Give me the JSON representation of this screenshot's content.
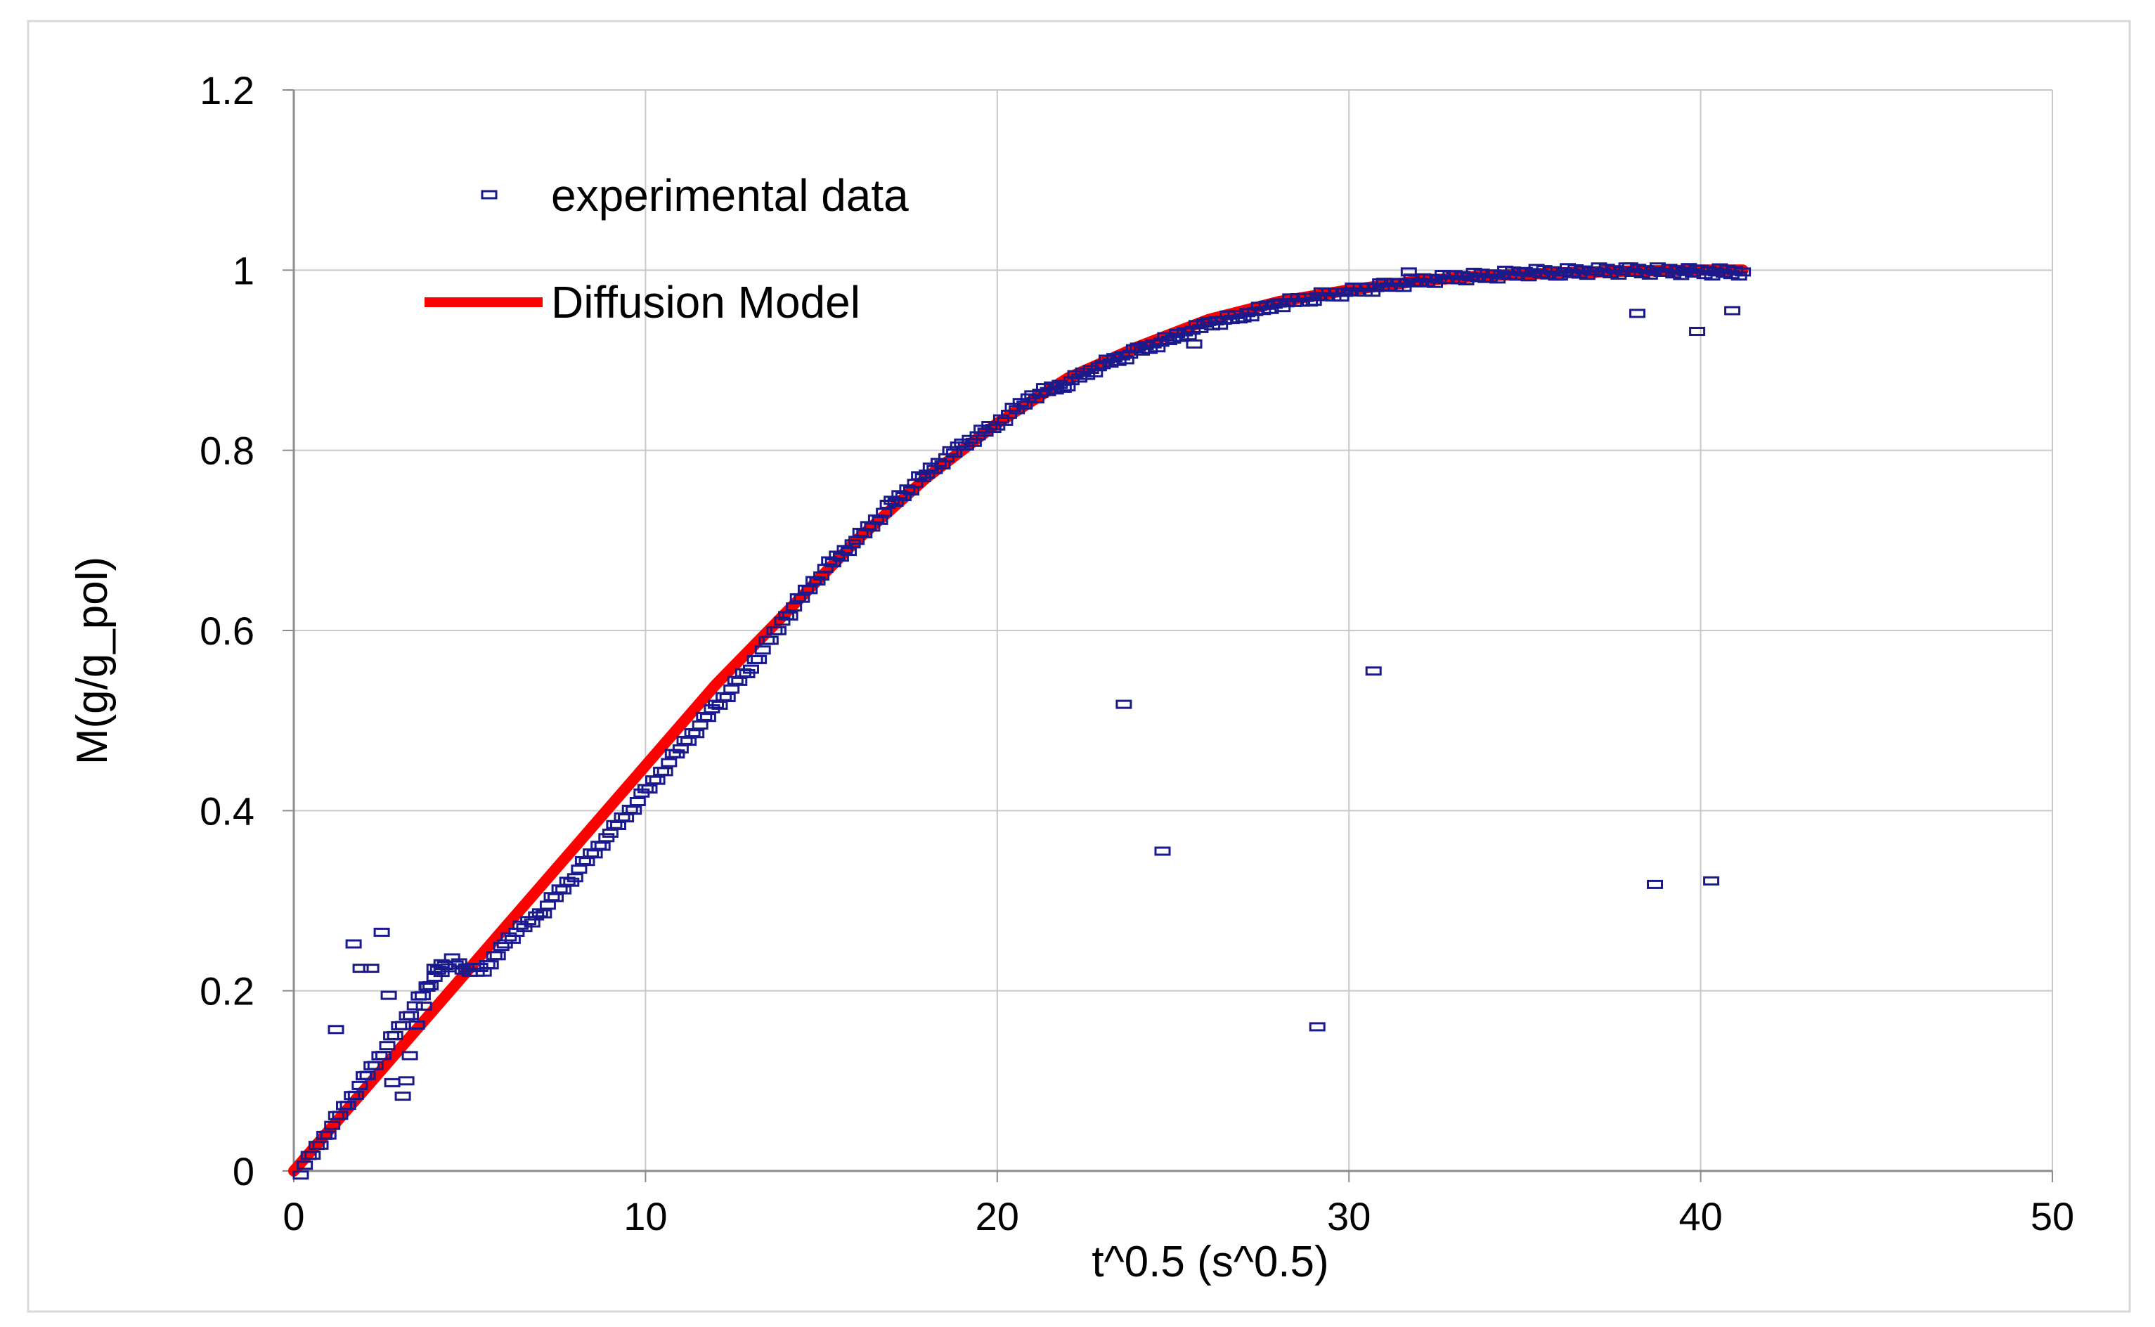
{
  "chart_data": {
    "type": "scatter",
    "title": "",
    "xlabel": "t^0.5 (s^0.5)",
    "ylabel": "M(g/g_pol)",
    "xlim": [
      0,
      50
    ],
    "ylim": [
      0,
      1.2
    ],
    "xticks": [
      "0",
      "10",
      "20",
      "30",
      "40",
      "50"
    ],
    "yticks": [
      "0",
      "0.2",
      "0.4",
      "0.6",
      "0.8",
      "1",
      "1.2"
    ],
    "grid": true,
    "legend_position": "top-left",
    "colors": {
      "experimental": "#1a1a8c",
      "model": "#ff0000",
      "grid": "#c8c8c8",
      "axis": "#8c8c8c"
    },
    "series": [
      {
        "name": "experimental data",
        "type": "scatter",
        "marker": "rect-open",
        "note": "dense measured curve plus scattered outliers",
        "dense_curve": {
          "x": [
            0.2,
            4.0,
            4.5,
            5.0,
            5.5,
            6.0,
            7.0,
            8.0,
            9.0,
            10.0,
            11.0,
            12.0,
            13.0,
            14.0,
            15.0,
            16.0,
            17.0,
            18.0,
            19.0,
            20.0,
            21.0,
            22.0,
            23.0,
            24.0,
            25.0,
            26.0,
            27.0,
            28.0,
            29.0,
            30.0,
            31.0,
            32.0,
            33.0,
            34.0,
            35.0,
            36.0,
            37.0,
            38.0,
            39.0,
            40.0,
            41.2
          ],
          "y": [
            0.0,
            0.215,
            0.232,
            0.222,
            0.226,
            0.255,
            0.285,
            0.33,
            0.375,
            0.42,
            0.47,
            0.515,
            0.56,
            0.615,
            0.665,
            0.7,
            0.74,
            0.775,
            0.805,
            0.83,
            0.86,
            0.875,
            0.895,
            0.91,
            0.925,
            0.94,
            0.95,
            0.962,
            0.97,
            0.976,
            0.982,
            0.988,
            0.992,
            0.994,
            0.997,
            0.998,
            0.999,
            0.999,
            0.999,
            0.998,
            0.998
          ]
        },
        "outliers": {
          "x": [
            1.2,
            1.7,
            1.9,
            2.2,
            2.5,
            2.7,
            2.8,
            3.1,
            3.2,
            3.3,
            3.5,
            3.7,
            3.8,
            4.0,
            4.2,
            23.6,
            24.7,
            25.6,
            29.1,
            30.7,
            31.7,
            38.2,
            38.7,
            39.9,
            40.3,
            40.9
          ],
          "y": [
            0.157,
            0.252,
            0.225,
            0.225,
            0.265,
            0.195,
            0.098,
            0.083,
            0.1,
            0.128,
            0.162,
            0.183,
            0.204,
            0.225,
            0.23,
            0.518,
            0.355,
            0.918,
            0.16,
            0.555,
            0.998,
            0.952,
            0.318,
            0.932,
            0.322,
            0.955
          ]
        }
      },
      {
        "name": "Diffusion Model",
        "type": "line",
        "x": [
          0,
          2,
          4,
          6,
          8,
          10,
          12,
          14,
          16,
          18,
          20,
          22,
          24,
          26,
          28,
          30,
          32,
          34,
          36,
          38,
          40,
          41.2
        ],
        "y": [
          0.0,
          0.09,
          0.18,
          0.27,
          0.36,
          0.45,
          0.54,
          0.62,
          0.7,
          0.77,
          0.83,
          0.88,
          0.915,
          0.945,
          0.965,
          0.978,
          0.988,
          0.994,
          0.997,
          0.999,
          1.0,
          1.0
        ]
      }
    ]
  }
}
